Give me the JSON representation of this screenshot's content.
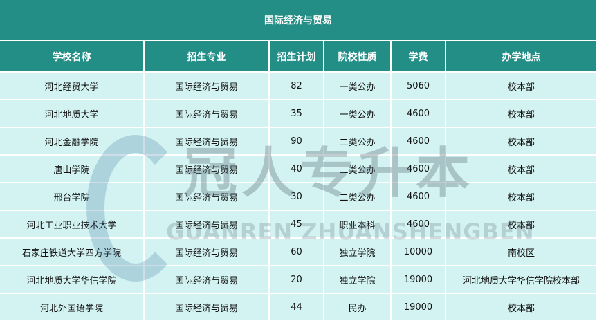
{
  "title": "国际经济与贸易",
  "headers": [
    "学校名称",
    "招生专业",
    "招生计划",
    "院校性质",
    "学费",
    "办学地点"
  ],
  "rows": [
    [
      "河北经贸大学",
      "国际经济与贸易",
      "82",
      "一类公办",
      "5060",
      "校本部"
    ],
    [
      "河北地质大学",
      "国际经济与贸易",
      "35",
      "一类公办",
      "4600",
      "校本部"
    ],
    [
      "河北金融学院",
      "国际经济与贸易",
      "90",
      "二类公办",
      "4600",
      "校本部"
    ],
    [
      "唐山学院",
      "国际经济与贸易",
      "40",
      "二类公办",
      "4600",
      "校本部"
    ],
    [
      "邢台学院",
      "国际经济与贸易",
      "30",
      "二类公办",
      "4600",
      "校本部"
    ],
    [
      "河北工业职业技术大学",
      "国际经济与贸易",
      "45",
      "职业本科",
      "4600",
      "校本部"
    ],
    [
      "石家庄铁道大学四方学院",
      "国际经济与贸易",
      "60",
      "独立学院",
      "10000",
      "南校区"
    ],
    [
      "河北地质大学华信学院",
      "国际经济与贸易",
      "20",
      "独立学院",
      "19000",
      "河北地质大学华信学院校本部"
    ],
    [
      "河北外国语学院",
      "国际经济与贸易",
      "44",
      "民办",
      "19000",
      "校本部"
    ]
  ],
  "watermark": {
    "cn": "冠人专升本",
    "en": "GUANREN ZHUANSHENGBEN"
  },
  "colors": {
    "header": "#238e86",
    "row": "#d3f3f2"
  }
}
